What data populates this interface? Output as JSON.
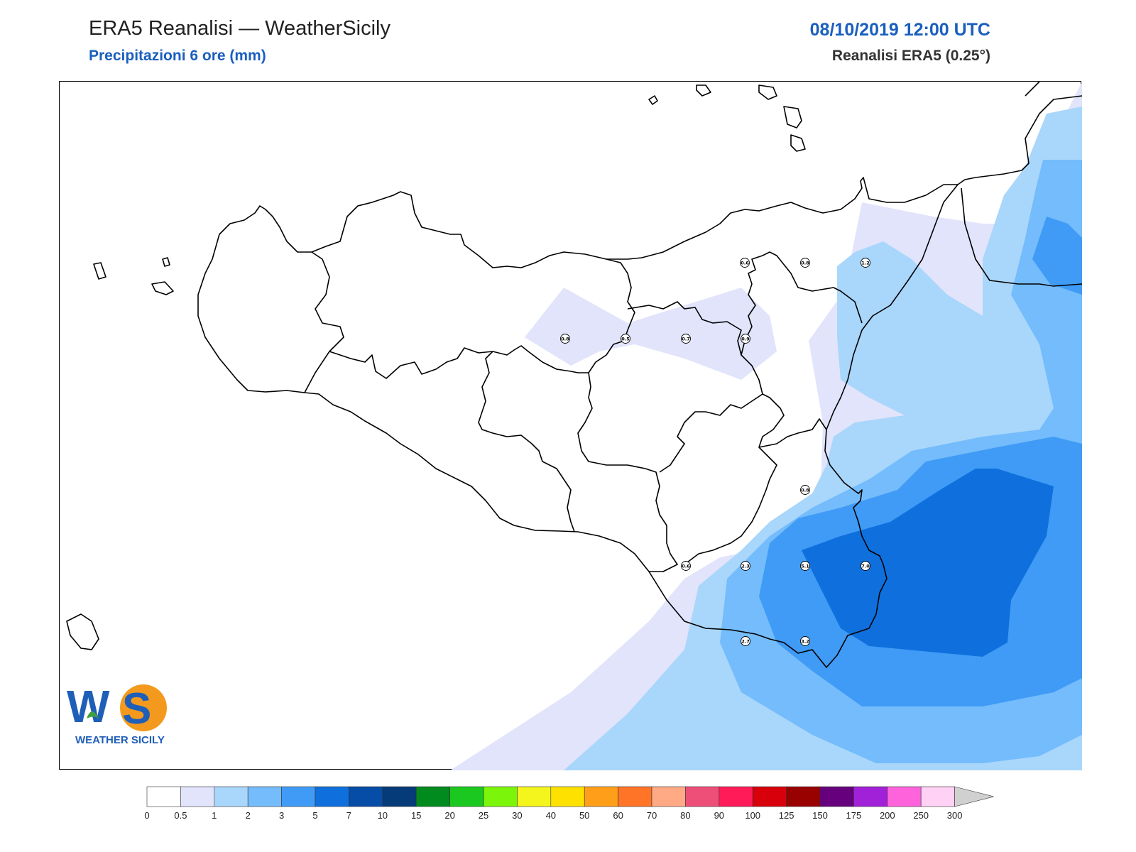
{
  "header": {
    "title": "ERA5 Reanalisi — WeatherSicily",
    "subtitle": "Precipitazioni 6 ore (mm)",
    "datetime": "08/10/2019 12:00 UTC",
    "model": "Reanalisi ERA5 (0.25°)"
  },
  "legend": {
    "labels": [
      "0",
      "0.5",
      "1",
      "2",
      "3",
      "5",
      "7",
      "10",
      "15",
      "20",
      "25",
      "30",
      "40",
      "50",
      "60",
      "70",
      "80",
      "90",
      "100",
      "125",
      "150",
      "175",
      "200",
      "250",
      "300"
    ],
    "colors": [
      "#ffffff",
      "#e1e4fb",
      "#a9d6fb",
      "#74bcfb",
      "#3f9bf6",
      "#0f70dd",
      "#064da8",
      "#053b78",
      "#018a1e",
      "#1ac820",
      "#7bf50a",
      "#f5f51e",
      "#ffe100",
      "#ff9f19",
      "#ff7427",
      "#ffa985",
      "#ee4f79",
      "#ff1b58",
      "#d8000b",
      "#990000",
      "#66007c",
      "#a121d8",
      "#ff63dc",
      "#ffd1f5"
    ],
    "overflow_color": "#d0d0d0"
  },
  "stations": [
    {
      "label": "0.6"
    },
    {
      "label": "0.8"
    },
    {
      "label": "1.2"
    },
    {
      "label": "0.8"
    },
    {
      "label": "0.5"
    },
    {
      "label": "0.7"
    },
    {
      "label": "0.9"
    },
    {
      "label": "0.8"
    },
    {
      "label": "0.6"
    },
    {
      "label": "2.3"
    },
    {
      "label": "5.1"
    },
    {
      "label": "7.0"
    },
    {
      "label": "2.7"
    },
    {
      "label": "3.2"
    }
  ],
  "logo": {
    "letters": "WS",
    "name": "WEATHER SICILY",
    "colors": {
      "blue": "#1f5fb8",
      "orange": "#f39a1e",
      "green": "#3da142"
    }
  }
}
